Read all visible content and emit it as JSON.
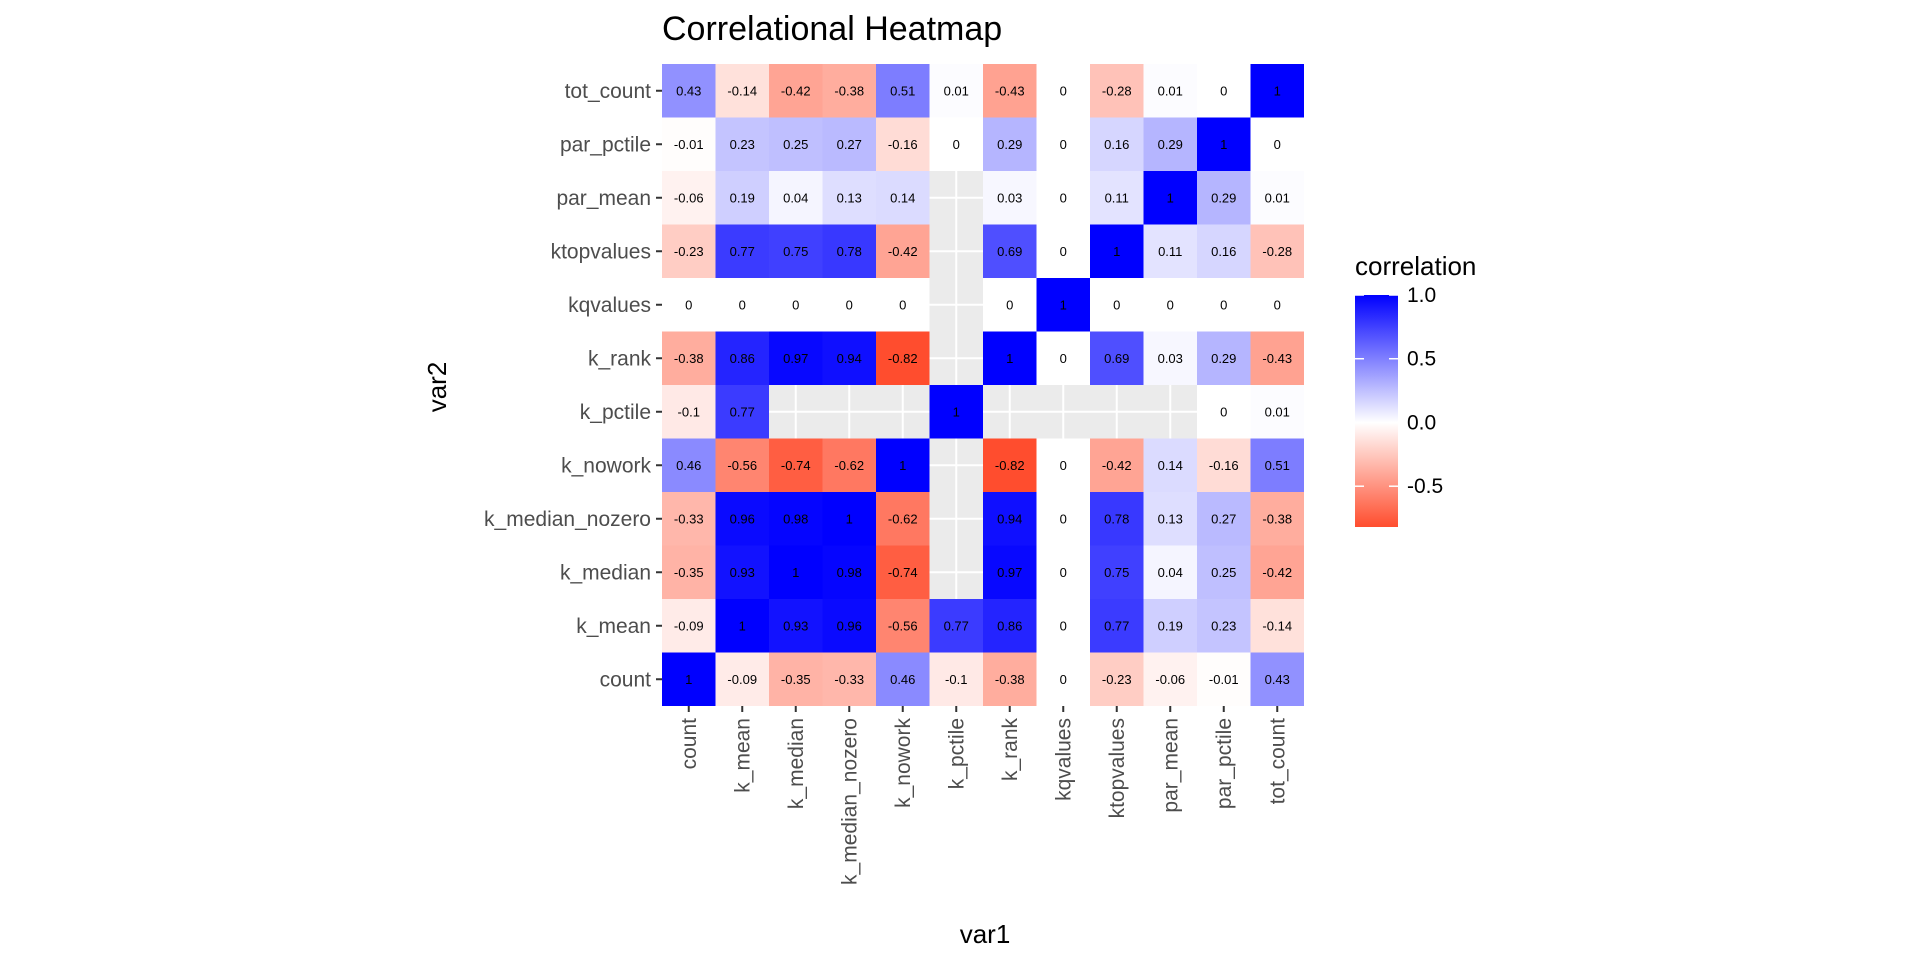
{
  "chart_data": {
    "type": "heatmap",
    "title": "Correlational Heatmap",
    "xlabel": "var1",
    "ylabel": "var2",
    "variables": [
      "count",
      "k_mean",
      "k_median",
      "k_median_nozero",
      "k_nowork",
      "k_pctile",
      "k_rank",
      "kqvalues",
      "ktopvalues",
      "par_mean",
      "par_pctile",
      "tot_count"
    ],
    "matrix": [
      [
        1,
        -0.09,
        -0.35,
        -0.33,
        0.46,
        -0.1,
        -0.38,
        0,
        -0.23,
        -0.06,
        -0.01,
        0.43
      ],
      [
        -0.09,
        1,
        0.93,
        0.96,
        -0.56,
        0.77,
        0.86,
        0,
        0.77,
        0.19,
        0.23,
        -0.14
      ],
      [
        -0.35,
        0.93,
        1,
        0.98,
        -0.74,
        null,
        0.97,
        0,
        0.75,
        0.04,
        0.25,
        -0.42
      ],
      [
        -0.33,
        0.96,
        0.98,
        1,
        -0.62,
        null,
        0.94,
        0,
        0.78,
        0.13,
        0.27,
        -0.38
      ],
      [
        0.46,
        -0.56,
        -0.74,
        -0.62,
        1,
        null,
        -0.82,
        0,
        -0.42,
        0.14,
        -0.16,
        0.51
      ],
      [
        -0.1,
        0.77,
        null,
        null,
        null,
        1,
        null,
        null,
        null,
        null,
        0,
        0.01
      ],
      [
        -0.38,
        0.86,
        0.97,
        0.94,
        -0.82,
        null,
        1,
        0,
        0.69,
        0.03,
        0.29,
        -0.43
      ],
      [
        0,
        0,
        0,
        0,
        0,
        null,
        0,
        1,
        0,
        0,
        0,
        0
      ],
      [
        -0.23,
        0.77,
        0.75,
        0.78,
        -0.42,
        null,
        0.69,
        0,
        1,
        0.11,
        0.16,
        -0.28
      ],
      [
        -0.06,
        0.19,
        0.04,
        0.13,
        0.14,
        null,
        0.03,
        0,
        0.11,
        1,
        0.29,
        0.01
      ],
      [
        -0.01,
        0.23,
        0.25,
        0.27,
        -0.16,
        0,
        0.29,
        0,
        0.16,
        0.29,
        1,
        0
      ],
      [
        0.43,
        -0.14,
        -0.42,
        -0.38,
        0.51,
        0.01,
        -0.43,
        0,
        -0.28,
        0.01,
        0,
        1
      ]
    ],
    "legend": {
      "title": "correlation",
      "position": "right",
      "ticks": [
        1.0,
        0.5,
        0.0,
        -0.5
      ],
      "tick_labels": [
        "1.0",
        "0.5",
        "0.0",
        "-0.5"
      ],
      "range": [
        -0.82,
        1
      ]
    },
    "colors": {
      "positive": "#0000ff",
      "zero": "#ffffff",
      "negative": "#ff4d2e",
      "panel_bg": "#ebebeb",
      "grid": "#ffffff"
    },
    "grid": true
  }
}
